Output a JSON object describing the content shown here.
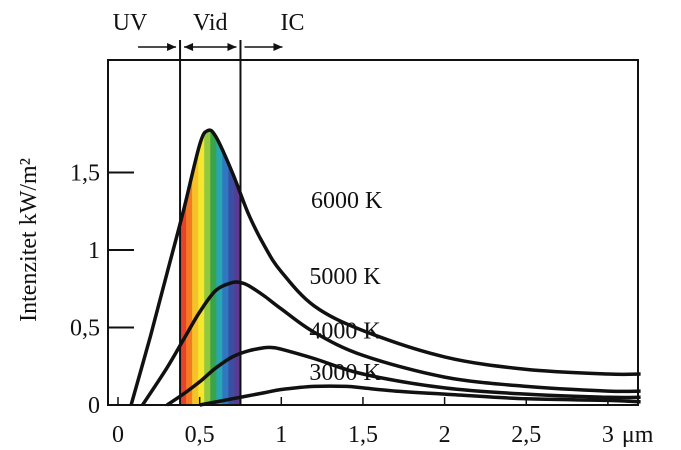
{
  "chart_data": {
    "type": "line",
    "ylabel": "Intenzitet kW/m²",
    "x_unit": "μm",
    "xlim": [
      0,
      3.2
    ],
    "ylim": [
      0,
      2.0
    ],
    "x_ticks": [
      {
        "v": 0,
        "label": "0"
      },
      {
        "v": 0.5,
        "label": "0,5"
      },
      {
        "v": 1,
        "label": "1"
      },
      {
        "v": 1.5,
        "label": "1,5"
      },
      {
        "v": 2,
        "label": "2"
      },
      {
        "v": 2.5,
        "label": "2,5"
      },
      {
        "v": 3,
        "label": "3"
      }
    ],
    "y_ticks": [
      {
        "v": 0,
        "label": "0"
      },
      {
        "v": 0.5,
        "label": "0,5"
      },
      {
        "v": 1,
        "label": "1"
      },
      {
        "v": 1.5,
        "label": "1,5"
      }
    ],
    "regions": [
      {
        "name": "UV",
        "to": 0.38
      },
      {
        "name": "Vid",
        "from": 0.38,
        "to": 0.75
      },
      {
        "name": "IC",
        "from": 0.75
      }
    ],
    "spectrum_colors": [
      "#e8412c",
      "#f37a22",
      "#f7c12a",
      "#f5e62e",
      "#93c83e",
      "#3aa44a",
      "#29a6b3",
      "#2f78c0",
      "#3a4ea3",
      "#5a3b92"
    ],
    "series": [
      {
        "name": "6000 K",
        "x": [
          0.08,
          0.2,
          0.3,
          0.4,
          0.5,
          0.55,
          0.6,
          0.7,
          0.8,
          0.9,
          1.0,
          1.2,
          1.5,
          2.0,
          2.5,
          3.0,
          3.2
        ],
        "y": [
          0.0,
          0.45,
          0.85,
          1.25,
          1.68,
          1.77,
          1.73,
          1.5,
          1.23,
          1.02,
          0.86,
          0.64,
          0.48,
          0.31,
          0.23,
          0.2,
          0.2
        ]
      },
      {
        "name": "5000 K",
        "x": [
          0.15,
          0.3,
          0.4,
          0.5,
          0.6,
          0.7,
          0.75,
          0.8,
          0.9,
          1.0,
          1.2,
          1.5,
          2.0,
          2.5,
          3.0,
          3.2
        ],
        "y": [
          0.0,
          0.24,
          0.42,
          0.6,
          0.74,
          0.79,
          0.79,
          0.77,
          0.7,
          0.62,
          0.47,
          0.32,
          0.18,
          0.12,
          0.09,
          0.09
        ]
      },
      {
        "name": "4000 K",
        "x": [
          0.3,
          0.4,
          0.5,
          0.6,
          0.7,
          0.8,
          0.9,
          0.95,
          1.0,
          1.2,
          1.5,
          2.0,
          2.5,
          3.0,
          3.2
        ],
        "y": [
          0.0,
          0.07,
          0.15,
          0.24,
          0.31,
          0.35,
          0.37,
          0.37,
          0.36,
          0.3,
          0.2,
          0.11,
          0.07,
          0.05,
          0.05
        ]
      },
      {
        "name": "3000 K",
        "x": [
          0.5,
          0.7,
          0.9,
          1.0,
          1.2,
          1.4,
          1.5,
          1.7,
          2.0,
          2.5,
          3.0,
          3.2
        ],
        "y": [
          0.0,
          0.04,
          0.08,
          0.1,
          0.12,
          0.12,
          0.11,
          0.09,
          0.07,
          0.04,
          0.03,
          0.02
        ]
      }
    ]
  }
}
